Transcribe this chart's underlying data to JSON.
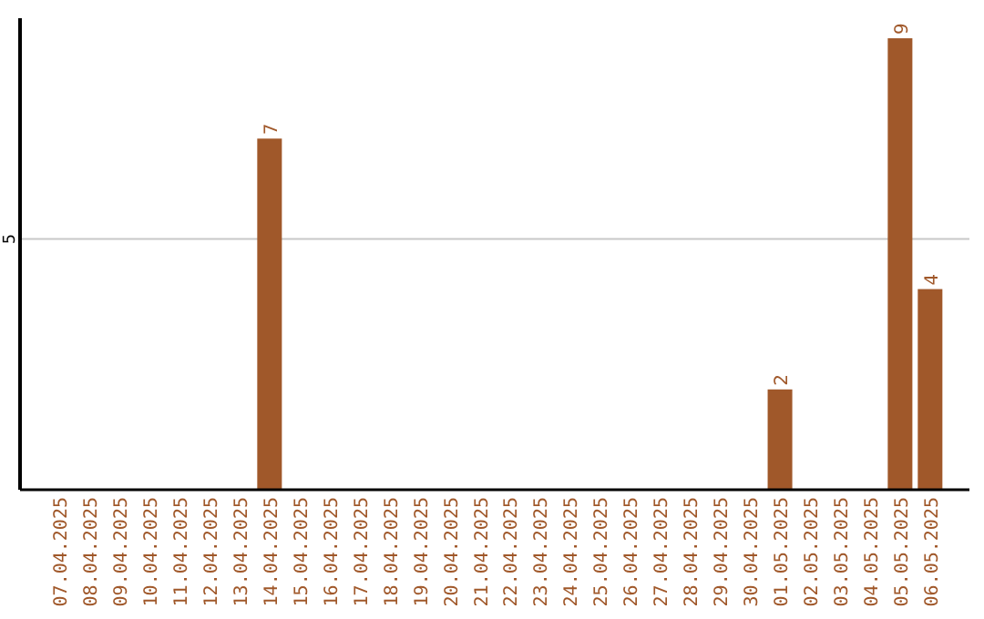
{
  "chart_data": {
    "type": "bar",
    "categories": [
      "07.04.2025",
      "08.04.2025",
      "09.04.2025",
      "10.04.2025",
      "11.04.2025",
      "12.04.2025",
      "13.04.2025",
      "14.04.2025",
      "15.04.2025",
      "16.04.2025",
      "17.04.2025",
      "18.04.2025",
      "19.04.2025",
      "20.04.2025",
      "21.04.2025",
      "22.04.2025",
      "23.04.2025",
      "24.04.2025",
      "25.04.2025",
      "26.04.2025",
      "27.04.2025",
      "28.04.2025",
      "29.04.2025",
      "30.04.2025",
      "01.05.2025",
      "02.05.2025",
      "03.05.2025",
      "04.05.2025",
      "05.05.2025",
      "06.05.2025"
    ],
    "values": [
      null,
      null,
      null,
      null,
      null,
      null,
      null,
      7,
      null,
      null,
      null,
      null,
      null,
      null,
      null,
      null,
      null,
      null,
      null,
      null,
      null,
      null,
      null,
      null,
      2,
      null,
      null,
      null,
      9,
      4
    ],
    "color": "#a0582a",
    "ylim": [
      0,
      9.4
    ],
    "yticks": [
      5
    ],
    "grid": "y",
    "data_labels": true
  }
}
